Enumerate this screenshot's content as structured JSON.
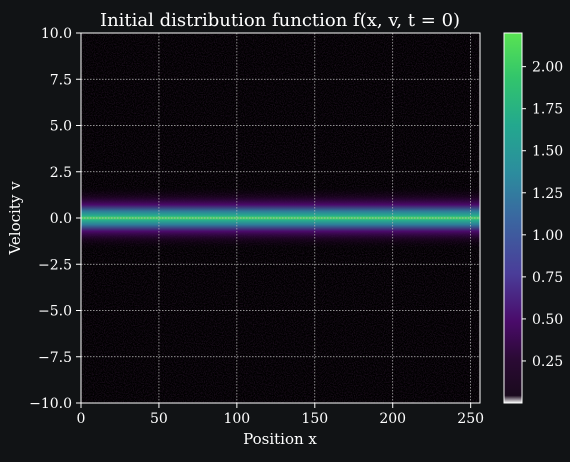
{
  "chart_data": {
    "type": "heatmap",
    "title": "Initial distribution function f(x, v, t = 0)",
    "xlabel": "Position x",
    "ylabel": "Velocity v",
    "xlim": [
      0,
      256
    ],
    "ylim": [
      -10,
      10
    ],
    "x_ticks": [
      0,
      50,
      100,
      150,
      200,
      250
    ],
    "x_tick_labels": [
      "0",
      "50",
      "100",
      "150",
      "200",
      "250"
    ],
    "y_ticks": [
      10,
      7.5,
      5,
      2.5,
      0,
      -2.5,
      -5,
      -7.5,
      -10
    ],
    "y_tick_labels": [
      "10.0",
      "7.5",
      "5.0",
      "2.5",
      "0.0",
      "−2.5",
      "−5.0",
      "−7.5",
      "−10.0"
    ],
    "grid": true,
    "colormap": "viridis-like (black → purple → blue → teal → green)",
    "colorbar": {
      "range": [
        0,
        2.2
      ],
      "ticks": [
        2.0,
        1.75,
        1.5,
        1.25,
        1.0,
        0.75,
        0.5,
        0.25
      ],
      "tick_labels": [
        "2.00",
        "1.75",
        "1.50",
        "1.25",
        "1.00",
        "0.75",
        "0.50",
        "0.25"
      ]
    },
    "distribution": {
      "form": "Maxwellian in v, uniform in x, with noise",
      "center_v": 0,
      "peak_value": 2.2,
      "half_width_v": 1.0
    },
    "colors": {
      "background": "#111315",
      "plot_background": "#000000",
      "grid": "#bfbfbf",
      "text": "#ffffff"
    }
  }
}
